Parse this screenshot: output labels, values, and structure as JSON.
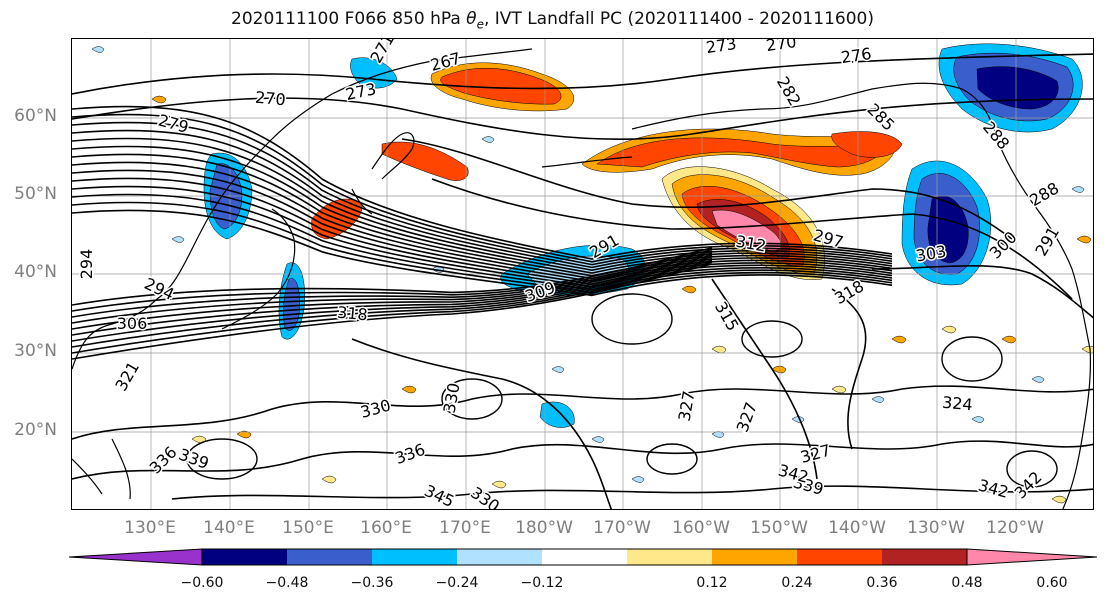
{
  "title": "2020111100 F066 850 hPa θe, IVT Landfall PC (2020111400 - 2020111600)",
  "lat_labels": [
    "60°N",
    "50°N",
    "40°N",
    "30°N",
    "20°N"
  ],
  "lon_labels": [
    "130°E",
    "140°E",
    "150°E",
    "160°E",
    "170°E",
    "180°W",
    "170°W",
    "160°W",
    "150°W",
    "140°W",
    "130°W",
    "120°W"
  ],
  "contour_labels": [
    "271",
    "267",
    "270",
    "273",
    "273",
    "270",
    "276",
    "282",
    "279",
    "285",
    "288",
    "288",
    "291",
    "294",
    "294",
    "297",
    "300",
    "303",
    "309",
    "312",
    "315",
    "318",
    "318",
    "321",
    "324",
    "327",
    "327",
    "327",
    "330",
    "330",
    "336",
    "336",
    "339",
    "339",
    "342",
    "342",
    "345",
    "330",
    "342",
    "306",
    "291"
  ],
  "colorbar": {
    "ticks": [
      "−0.60",
      "−0.48",
      "−0.36",
      "−0.24",
      "−0.12",
      "0.12",
      "0.24",
      "0.36",
      "0.48",
      "0.60"
    ],
    "colors": [
      "#9932cc",
      "#000080",
      "#3a5fcd",
      "#00bfff",
      "#b0e2ff",
      "#ffffff",
      "#ffe88a",
      "#ffa500",
      "#ff4500",
      "#b22222",
      "#ff88aa"
    ]
  }
}
